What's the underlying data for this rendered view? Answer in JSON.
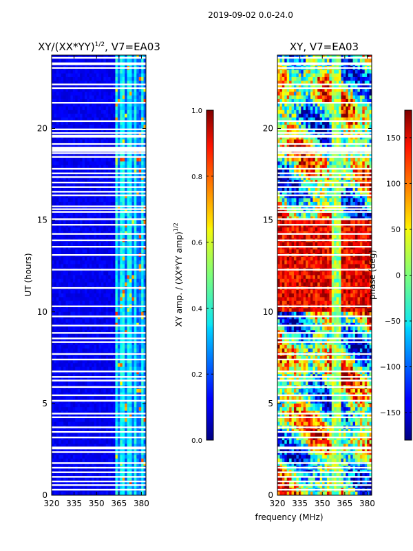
{
  "chart_data": [
    {
      "type": "heatmap",
      "suptitle": "2019-09-02 0.0-24.0",
      "title_prefix": "XY/(XX*YY)",
      "title_exponent": "1/2",
      "title_suffix": ", V7=EA03",
      "ylabel": "UT (hours)",
      "xlim": [
        320,
        383
      ],
      "ylim": [
        0,
        24
      ],
      "xticks": [
        320,
        335,
        350,
        365,
        380
      ],
      "yticks": [
        0,
        5,
        10,
        15,
        20
      ],
      "colormap": "jet",
      "colorbar": {
        "label_text": "XY amp. / (XX*YY amp)",
        "label_exponent": "1/2",
        "range": [
          0.0,
          1.0
        ],
        "ticks": [
          "0.0",
          "0.2",
          "0.4",
          "0.6",
          "0.8",
          "1.0"
        ],
        "tick_values": [
          0.0,
          0.2,
          0.4,
          0.6,
          0.8,
          1.0
        ]
      }
    },
    {
      "type": "heatmap",
      "title": "XY, V7=EA03",
      "xlabel": "frequency (MHz)",
      "xlim": [
        320,
        383
      ],
      "ylim": [
        0,
        24
      ],
      "xticks": [
        320,
        335,
        350,
        365,
        380
      ],
      "yticks": [
        0,
        5,
        10,
        15,
        20
      ],
      "colormap": "jet",
      "colorbar": {
        "label": "phase (deg)",
        "range": [
          -180,
          180
        ],
        "ticks": [
          "−150",
          "−100",
          "−50",
          "0",
          "50",
          "100",
          "150"
        ],
        "tick_values": [
          -150,
          -100,
          -50,
          0,
          50,
          100,
          150
        ]
      }
    }
  ],
  "flagged_ut_hours": [
    0.3,
    0.55,
    0.75,
    1.0,
    1.25,
    1.5,
    1.75,
    2.35,
    2.55,
    3.15,
    3.45,
    3.7,
    4.25,
    4.45,
    5.15,
    5.45,
    5.9,
    6.25,
    6.45,
    6.75,
    7.4,
    7.7,
    8.35,
    8.55,
    8.85,
    9.25,
    9.75,
    10.3,
    11.3,
    12.3,
    13.1,
    13.55,
    13.9,
    14.25,
    14.75,
    15.05,
    15.45,
    15.6,
    15.75,
    16.35,
    16.55,
    16.8,
    17.05,
    17.35,
    17.55,
    17.8,
    18.45,
    18.65,
    18.85,
    19.15,
    19.55,
    19.75,
    19.95,
    20.4,
    21.4,
    22.2,
    22.4,
    23.3,
    23.5,
    23.85
  ],
  "flagged_blocks_ut": [
    [
      18.2,
      19.0
    ],
    [
      19.25,
      19.65
    ],
    [
      23.3,
      23.6
    ],
    [
      2.4,
      2.65
    ],
    [
      6.1,
      6.3
    ]
  ]
}
